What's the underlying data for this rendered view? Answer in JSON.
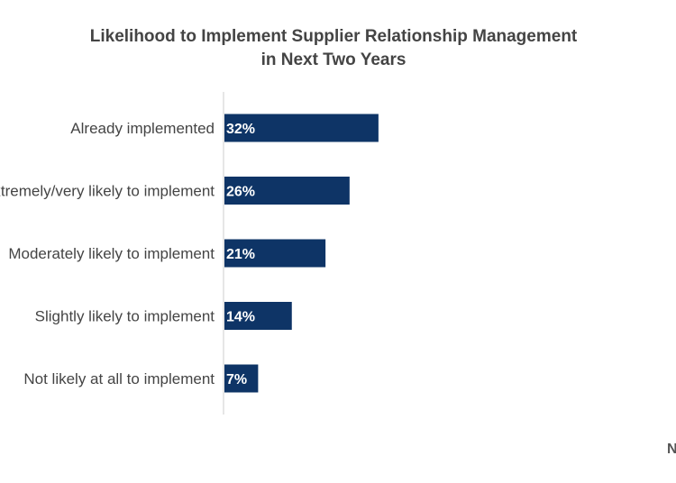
{
  "chart_data": {
    "type": "bar",
    "orientation": "horizontal",
    "title_lines": [
      "Likelihood to Implement Supplier Relationship Management",
      "in Next Two Years"
    ],
    "categories": [
      "Already implemented",
      "Extremely/very likely to implement",
      "Moderately likely to implement",
      "Slightly likely to implement",
      "Not likely at all to implement"
    ],
    "values": [
      32,
      26,
      21,
      14,
      7
    ],
    "value_labels": [
      "32%",
      "26%",
      "21%",
      "14%",
      "7%"
    ],
    "xlim": [
      0,
      100
    ],
    "grid": false,
    "legend": "none",
    "bar_color": "#0e3466",
    "label_color": "#ffffff",
    "text_color": "#444444",
    "axis_color": "#cccccc"
  },
  "footer_fragment": "N"
}
